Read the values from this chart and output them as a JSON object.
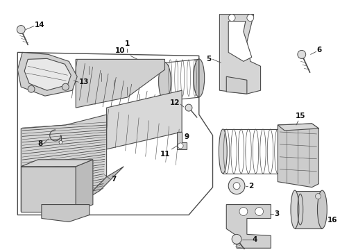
{
  "background_color": "#ffffff",
  "line_color": "#4a4a4a",
  "fill_color": "#e8e8e8",
  "fig_width": 4.9,
  "fig_height": 3.6,
  "dpi": 100,
  "font_size": 7.5,
  "bold_font": true
}
